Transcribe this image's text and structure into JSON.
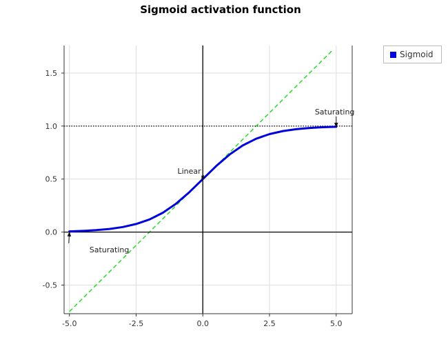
{
  "chart_data": {
    "type": "line",
    "title": "Sigmoid activation function",
    "xlabel": "",
    "ylabel": "",
    "xlim": [
      -5.2,
      5.6
    ],
    "ylim": [
      -0.77,
      1.76
    ],
    "x_ticks": [
      -5.0,
      -2.5,
      0.0,
      2.5,
      5.0
    ],
    "x_tick_labels": [
      "-5.0",
      "-2.5",
      "0.0",
      "2.5",
      "5.0"
    ],
    "y_ticks": [
      -0.5,
      0.0,
      0.5,
      1.0,
      1.5
    ],
    "y_tick_labels": [
      "-0.5",
      "0.0",
      "0.5",
      "1.0",
      "1.5"
    ],
    "grid": true,
    "legend_position": "top-right-outside",
    "series": [
      {
        "name": "Sigmoid",
        "color": "#0000dd",
        "style": "solid",
        "x": [
          -5.0,
          -4.5,
          -4.0,
          -3.5,
          -3.0,
          -2.5,
          -2.0,
          -1.5,
          -1.0,
          -0.5,
          0.0,
          0.5,
          1.0,
          1.5,
          2.0,
          2.5,
          3.0,
          3.5,
          4.0,
          4.5,
          5.0
        ],
        "y": [
          0.0067,
          0.011,
          0.018,
          0.0293,
          0.0474,
          0.0759,
          0.1192,
          0.1824,
          0.2689,
          0.3775,
          0.5,
          0.6225,
          0.7311,
          0.8176,
          0.8808,
          0.9241,
          0.9526,
          0.9707,
          0.982,
          0.989,
          0.9933
        ]
      }
    ],
    "reference_lines": [
      {
        "kind": "linear-approximation",
        "color": "#22dd22",
        "style": "dashed",
        "x": [
          -5.0,
          4.88
        ],
        "y": [
          -0.75,
          1.72
        ]
      },
      {
        "kind": "asymptote",
        "color": "#000000",
        "style": "dotted",
        "y": 1.0
      },
      {
        "kind": "axis",
        "color": "#000000",
        "style": "solid",
        "y": 0.0
      },
      {
        "kind": "axis",
        "color": "#000000",
        "style": "solid",
        "x": 0.0
      }
    ],
    "annotations": [
      {
        "text": "Saturating",
        "point": [
          5.0,
          0.99
        ],
        "text_at": [
          4.2,
          1.11
        ]
      },
      {
        "text": "Linear",
        "point": [
          -0.04,
          0.49
        ],
        "text_at": [
          -0.95,
          0.55
        ]
      },
      {
        "text": "Saturating",
        "point": [
          -5.0,
          0.0
        ],
        "text_at": [
          -4.25,
          -0.19
        ]
      }
    ]
  }
}
